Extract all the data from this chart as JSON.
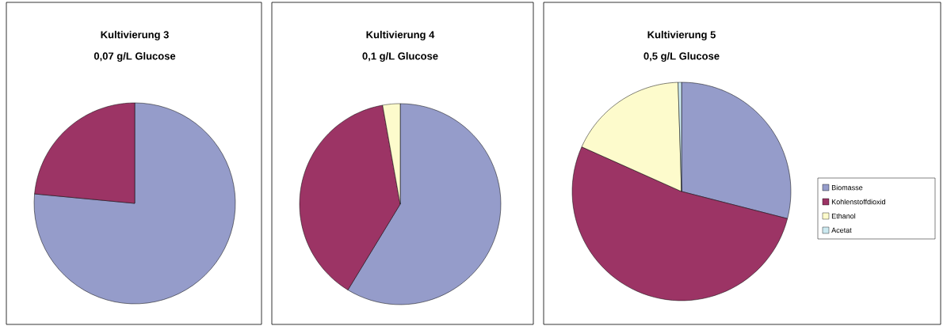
{
  "chart_data": [
    {
      "type": "pie",
      "title": "Kultivierung 3",
      "subtitle": "0,07 g/L Glucose",
      "categories": [
        null,
        null
      ],
      "values": [
        76.5,
        23.5
      ],
      "colors": [
        "#959cca",
        "#9c3465"
      ]
    },
    {
      "type": "pie",
      "title": "Kultivierung 4",
      "subtitle": "0,1 g/L Glucose",
      "categories": [
        null,
        null,
        null
      ],
      "values": [
        58.7,
        38.5,
        2.8
      ],
      "colors": [
        "#959cca",
        "#9c3465",
        "#fdfbcc"
      ]
    },
    {
      "type": "pie",
      "title": "Kultivierung 5",
      "subtitle": "0,5 g/L Glucose",
      "categories": [
        "Biomasse",
        "Kohlenstoffdioxid",
        "Ethanol",
        "Acetat"
      ],
      "values": [
        29.0,
        52.7,
        17.8,
        0.5
      ],
      "colors": [
        "#959cca",
        "#9c3465",
        "#fdfbcc",
        "#cce9f0"
      ],
      "legend": "right"
    }
  ]
}
